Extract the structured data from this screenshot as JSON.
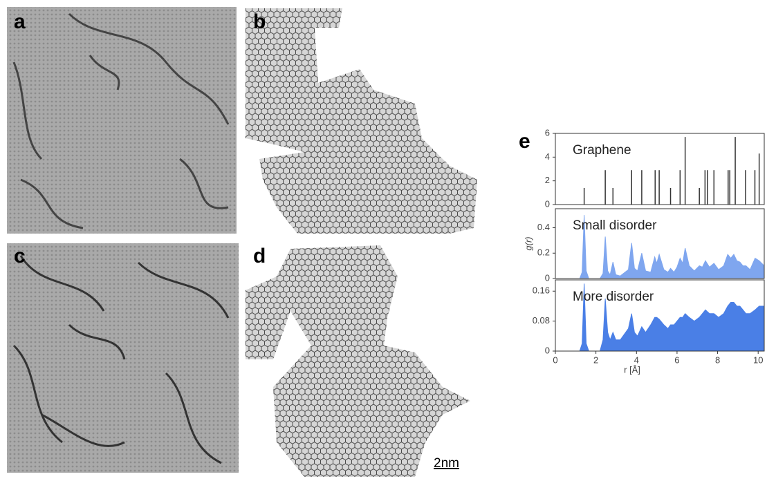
{
  "figure": {
    "panel_labels": [
      "a",
      "b",
      "c",
      "d",
      "e"
    ],
    "scale_bar": "2nm"
  },
  "chart_data": [
    {
      "type": "stem",
      "title": "Graphene",
      "color": "#333333",
      "x": [
        1.42,
        2.46,
        2.84,
        3.76,
        4.26,
        4.92,
        5.12,
        5.68,
        6.15,
        6.4,
        7.1,
        7.38,
        7.5,
        7.82,
        8.52,
        8.6,
        8.87,
        9.38,
        9.84,
        10.05
      ],
      "values": [
        1.4,
        2.9,
        1.4,
        2.9,
        2.9,
        2.9,
        2.9,
        1.4,
        2.9,
        5.7,
        1.4,
        2.9,
        2.9,
        2.9,
        2.9,
        2.9,
        5.7,
        2.9,
        2.9,
        4.3
      ],
      "xlim": [
        0,
        10.3
      ],
      "ylim": [
        0,
        6
      ],
      "yticks": [
        0,
        2,
        4,
        6
      ]
    },
    {
      "type": "area",
      "title": "Small disorder",
      "color": "#7fa6ef",
      "ylabel": "g(r)",
      "x": [
        0,
        1.2,
        1.32,
        1.42,
        1.52,
        1.65,
        2.2,
        2.35,
        2.46,
        2.58,
        2.7,
        2.84,
        2.98,
        3.2,
        3.6,
        3.76,
        3.9,
        4.05,
        4.26,
        4.45,
        4.7,
        4.9,
        5.0,
        5.12,
        5.35,
        5.55,
        5.68,
        5.85,
        6.0,
        6.15,
        6.28,
        6.4,
        6.6,
        6.85,
        7.1,
        7.25,
        7.4,
        7.6,
        7.82,
        8.05,
        8.3,
        8.5,
        8.65,
        8.8,
        8.95,
        9.1,
        9.25,
        9.4,
        9.6,
        9.85,
        10.05,
        10.3
      ],
      "values": [
        0,
        0,
        0.05,
        0.5,
        0.06,
        0,
        0,
        0.04,
        0.33,
        0.06,
        0.03,
        0.13,
        0.03,
        0.02,
        0.07,
        0.28,
        0.08,
        0.06,
        0.2,
        0.06,
        0.05,
        0.17,
        0.12,
        0.19,
        0.07,
        0.05,
        0.08,
        0.05,
        0.09,
        0.16,
        0.12,
        0.24,
        0.1,
        0.06,
        0.1,
        0.09,
        0.14,
        0.09,
        0.12,
        0.07,
        0.1,
        0.19,
        0.16,
        0.19,
        0.14,
        0.13,
        0.1,
        0.1,
        0.07,
        0.16,
        0.14,
        0.1
      ],
      "xlim": [
        0,
        10.3
      ],
      "ylim": [
        0,
        0.55
      ],
      "yticks": [
        0,
        0.2,
        0.4
      ]
    },
    {
      "type": "area",
      "title": "More disorder",
      "color": "#4a7fe6",
      "xlabel": "r [Å]",
      "x": [
        0,
        1.2,
        1.32,
        1.42,
        1.52,
        1.65,
        2.2,
        2.35,
        2.46,
        2.58,
        2.7,
        2.84,
        2.98,
        3.2,
        3.6,
        3.76,
        3.9,
        4.05,
        4.26,
        4.45,
        4.7,
        4.9,
        5.0,
        5.12,
        5.35,
        5.55,
        5.68,
        5.85,
        6.0,
        6.15,
        6.28,
        6.4,
        6.6,
        6.85,
        7.1,
        7.25,
        7.4,
        7.6,
        7.82,
        8.05,
        8.3,
        8.5,
        8.65,
        8.8,
        8.95,
        9.1,
        9.25,
        9.4,
        9.6,
        9.85,
        10.05,
        10.3
      ],
      "values": [
        0,
        0,
        0.02,
        0.18,
        0.02,
        0,
        0,
        0.03,
        0.14,
        0.05,
        0.03,
        0.05,
        0.03,
        0.03,
        0.06,
        0.1,
        0.05,
        0.04,
        0.065,
        0.05,
        0.07,
        0.09,
        0.09,
        0.085,
        0.07,
        0.06,
        0.07,
        0.07,
        0.08,
        0.09,
        0.09,
        0.1,
        0.09,
        0.08,
        0.09,
        0.1,
        0.11,
        0.1,
        0.1,
        0.09,
        0.1,
        0.12,
        0.13,
        0.13,
        0.12,
        0.12,
        0.11,
        0.1,
        0.1,
        0.11,
        0.12,
        0.12
      ],
      "xlim": [
        0,
        10.3
      ],
      "ylim": [
        0,
        0.19
      ],
      "yticks": [
        0,
        0.08,
        0.16
      ],
      "xticks": [
        0,
        2,
        4,
        6,
        8,
        10
      ]
    }
  ]
}
